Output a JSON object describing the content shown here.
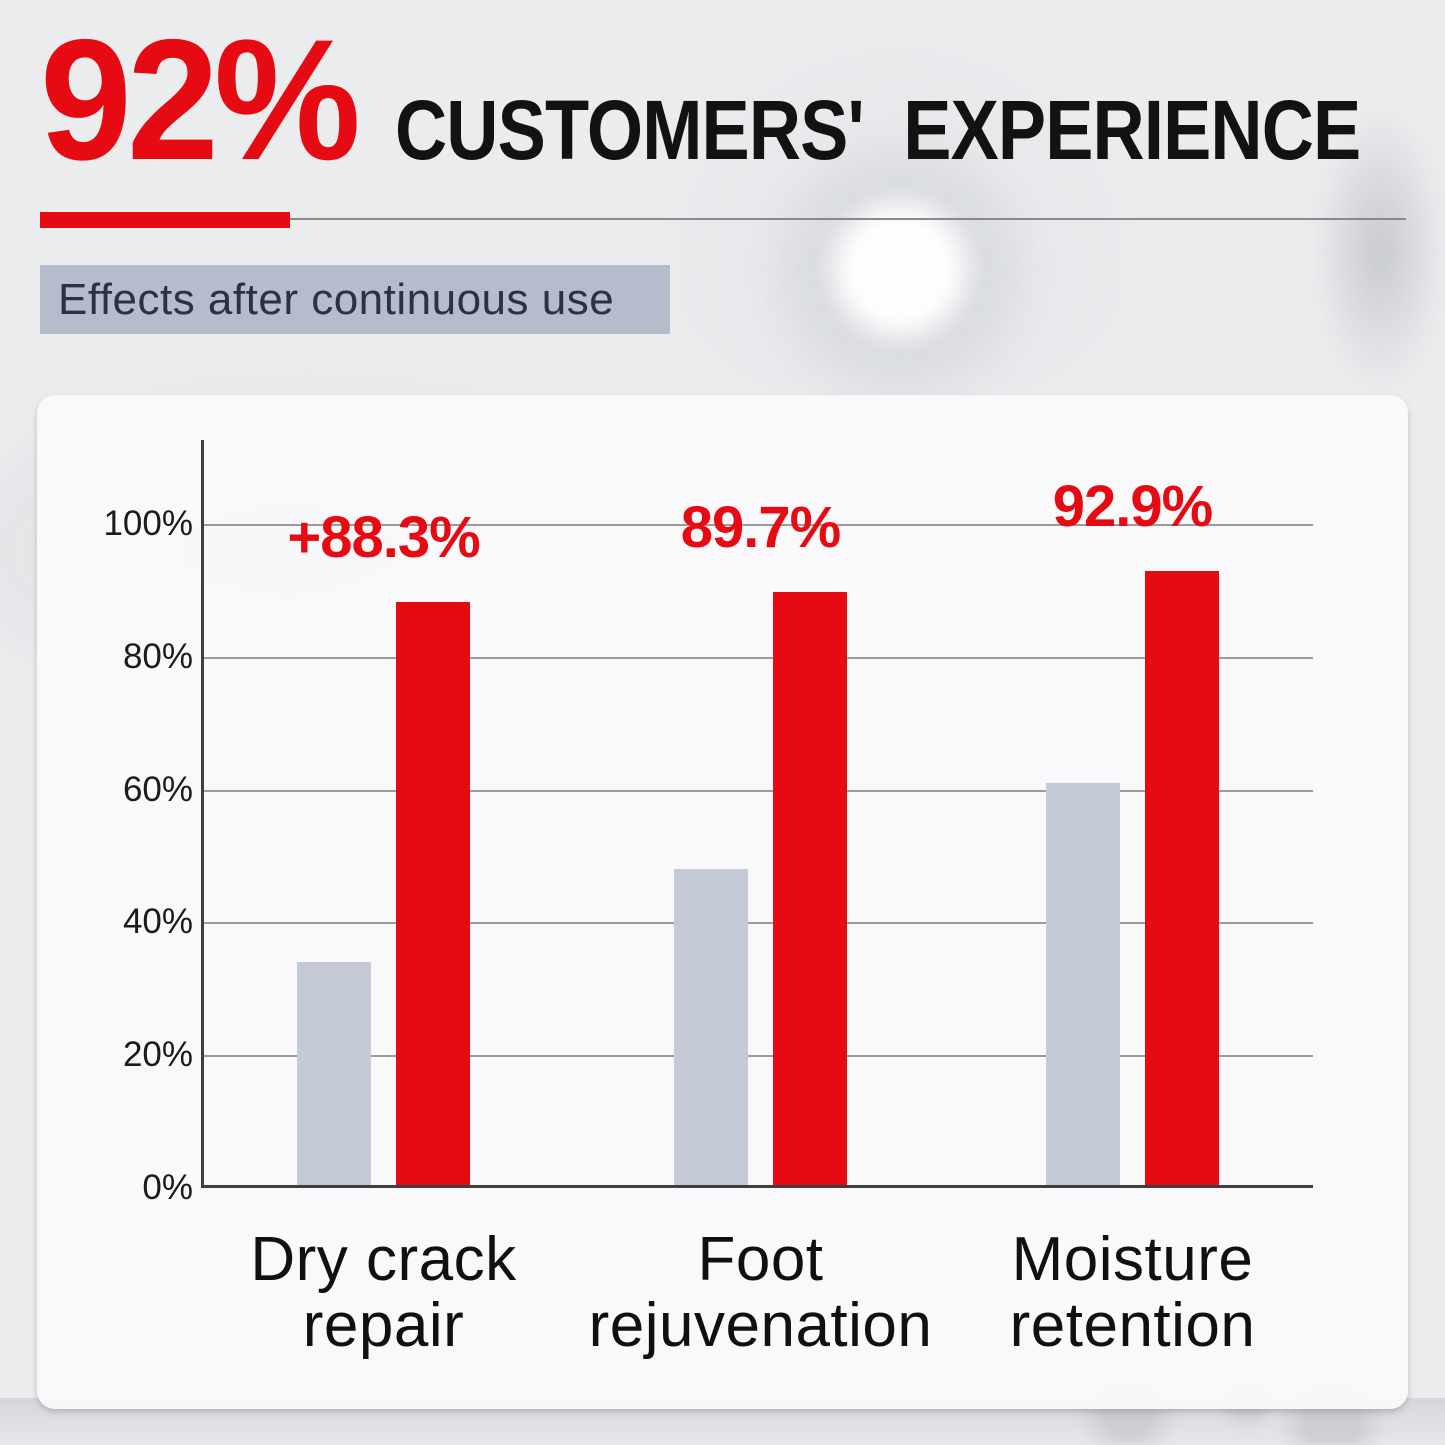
{
  "header": {
    "stat": "92%",
    "title": "CUSTOMERS' EXPERIENCE"
  },
  "subtitle": "Effects after continuous use",
  "chart_data": {
    "type": "bar",
    "title": "Effects after continuous use",
    "categories": [
      "Dry crack repair",
      "Foot rejuvenation",
      "Moisture retention"
    ],
    "categories_lines": [
      [
        "Dry crack",
        "repair"
      ],
      [
        "Foot",
        "rejuvenation"
      ],
      [
        "Moisture",
        "retention"
      ]
    ],
    "yticks": [
      "100%",
      "80%",
      "60%",
      "40%",
      "20%",
      "0%"
    ],
    "ylim": [
      0,
      100
    ],
    "grid": true,
    "legend_position": "none",
    "series": [
      {
        "name": "gray",
        "color": "#c3c9d7",
        "values": [
          34,
          48,
          61
        ]
      },
      {
        "name": "red",
        "color": "#e60b12",
        "values": [
          88.3,
          89.7,
          92.9
        ],
        "labels": [
          "+88.3%",
          "89.7%",
          "92.9%"
        ]
      }
    ]
  },
  "theme": {
    "accent_red": "#e60b12",
    "bar_gray": "#c3c9d7",
    "subtitle_bg": "#b5bccb",
    "subtitle_text": "#2c3340",
    "title_text": "#121212",
    "grid_color": "#9b9b9b",
    "axis_color": "#3f3f3f",
    "tick_text": "#1b1b1b",
    "page_bg": "#ebecee",
    "card_bg": "rgba(251,251,252,0.9)"
  }
}
